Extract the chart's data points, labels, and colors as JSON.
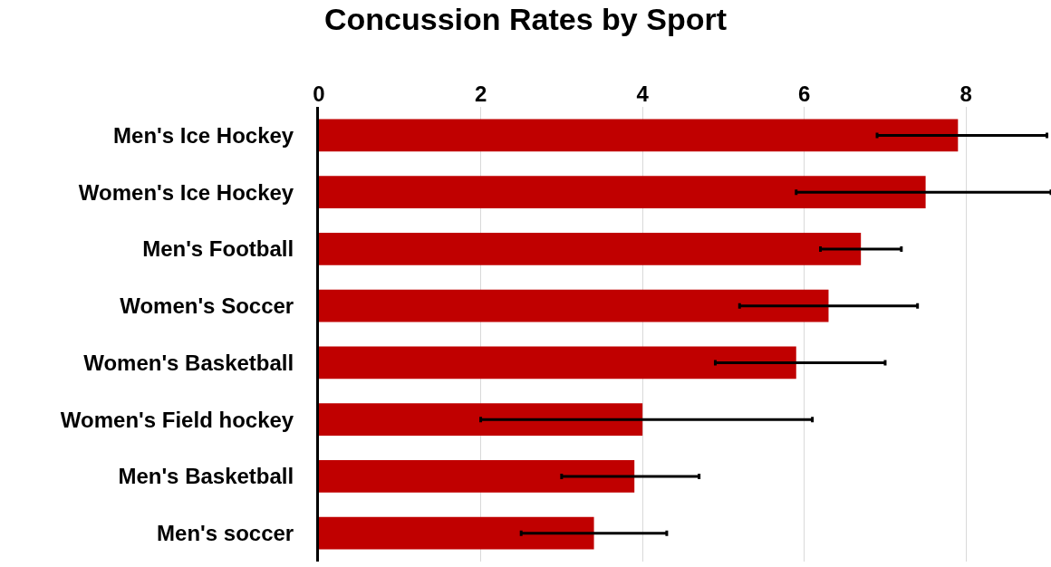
{
  "chart_data": {
    "type": "bar",
    "title": "Concussion Rates by Sport",
    "orientation": "horizontal",
    "categories": [
      "Men's Ice Hockey",
      "Women's Ice Hockey",
      "Men's Football",
      "Women's Soccer",
      "Women's Basketball",
      "Women's Field hockey",
      "Men's Basketball",
      "Men's soccer"
    ],
    "values": [
      7.9,
      7.5,
      6.7,
      6.3,
      5.9,
      4.0,
      3.9,
      3.4
    ],
    "errors": [
      [
        6.9,
        9.0
      ],
      [
        5.9,
        9.05
      ],
      [
        6.2,
        7.2
      ],
      [
        5.2,
        7.4
      ],
      [
        4.9,
        7.0
      ],
      [
        2.0,
        6.1
      ],
      [
        3.0,
        4.7
      ],
      [
        2.5,
        4.3
      ]
    ],
    "color": "#c00000",
    "xlim": [
      0,
      9.05
    ],
    "xticks": [
      0,
      2,
      4,
      6,
      8
    ],
    "grid": "x"
  }
}
